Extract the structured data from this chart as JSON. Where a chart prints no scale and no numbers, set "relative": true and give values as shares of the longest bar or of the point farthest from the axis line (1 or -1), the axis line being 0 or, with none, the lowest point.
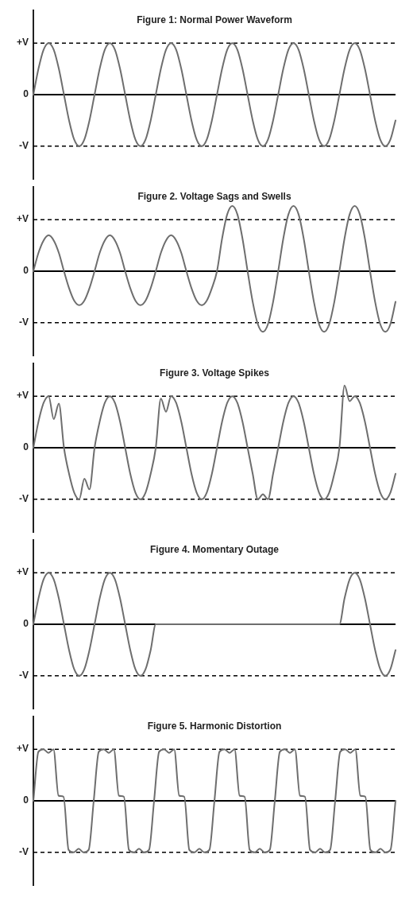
{
  "chart_data": [
    {
      "type": "line",
      "title": "Figure 1: Normal Power Waveform",
      "relative": true,
      "categories": [
        null,
        null,
        null,
        null,
        null,
        null,
        null,
        null,
        null,
        null,
        null,
        null,
        null,
        null,
        null,
        null,
        null,
        null,
        null,
        null,
        null,
        null,
        null,
        null,
        null,
        null,
        null,
        null,
        null,
        null,
        null,
        null,
        null,
        null,
        null,
        null,
        null,
        null,
        null,
        null,
        null,
        null,
        null,
        null,
        null,
        null,
        null,
        null,
        null,
        null,
        null,
        null,
        null,
        null,
        null,
        null,
        null,
        null,
        null,
        null,
        null,
        null,
        null,
        null,
        null,
        null,
        null,
        null,
        null,
        null,
        null,
        null
      ],
      "series": [
        {
          "color": "#6e6e6e",
          "values": [
            0,
            0.5,
            0.87,
            1,
            0.87,
            0.5,
            0,
            -0.5,
            -0.87,
            -1,
            -0.87,
            -0.5,
            0,
            0.5,
            0.87,
            1,
            0.87,
            0.5,
            0,
            -0.5,
            -0.87,
            -1,
            -0.87,
            -0.5,
            0,
            0.5,
            0.87,
            1,
            0.87,
            0.5,
            0,
            -0.5,
            -0.87,
            -1,
            -0.87,
            -0.5,
            0,
            0.5,
            0.87,
            1,
            0.87,
            0.5,
            0,
            -0.5,
            -0.87,
            -1,
            -0.87,
            -0.5,
            0,
            0.5,
            0.87,
            1,
            0.87,
            0.5,
            0,
            -0.5,
            -0.87,
            -1,
            -0.87,
            -0.5,
            0,
            0.5,
            0.87,
            1,
            0.87,
            0.5,
            0,
            -0.5,
            -0.87,
            -1,
            -0.87,
            -0.5
          ]
        }
      ],
      "grid": false,
      "marker": "none",
      "ref_lines": [
        {
          "axis": "y",
          "value": 1,
          "label": "+V",
          "color": "#000000",
          "line_style": "dashed"
        },
        {
          "axis": "y",
          "value": 0,
          "label": "0",
          "color": "#000000",
          "line_style": "solid"
        },
        {
          "axis": "y",
          "value": -1,
          "label": "-V",
          "color": "#000000",
          "line_style": "dashed"
        }
      ]
    },
    {
      "type": "line",
      "title": "Figure 2. Voltage Sags and Swells",
      "relative": true,
      "categories": [
        null,
        null,
        null,
        null,
        null,
        null,
        null,
        null,
        null,
        null,
        null,
        null,
        null,
        null,
        null,
        null,
        null,
        null,
        null,
        null,
        null,
        null,
        null,
        null,
        null,
        null,
        null,
        null,
        null,
        null,
        null,
        null,
        null,
        null,
        null,
        null,
        null,
        null,
        null,
        null,
        null,
        null,
        null,
        null,
        null,
        null,
        null,
        null,
        null,
        null,
        null,
        null,
        null,
        null,
        null,
        null,
        null,
        null,
        null,
        null,
        null,
        null,
        null,
        null,
        null,
        null,
        null,
        null,
        null,
        null,
        null,
        null
      ],
      "series": [
        {
          "color": "#6e6e6e",
          "values": [
            0,
            0.28,
            0.47,
            0.55,
            0.47,
            0.28,
            0,
            -0.26,
            -0.45,
            -0.52,
            -0.45,
            -0.26,
            0,
            0.28,
            0.47,
            0.55,
            0.47,
            0.28,
            0,
            -0.26,
            -0.45,
            -0.52,
            -0.45,
            -0.26,
            0,
            0.28,
            0.47,
            0.55,
            0.47,
            0.28,
            0,
            -0.26,
            -0.45,
            -0.52,
            -0.45,
            -0.26,
            0,
            0.5,
            0.87,
            1,
            0.87,
            0.5,
            0,
            -0.47,
            -0.81,
            -0.93,
            -0.81,
            -0.47,
            0,
            0.5,
            0.87,
            1,
            0.87,
            0.5,
            0,
            -0.47,
            -0.81,
            -0.93,
            -0.81,
            -0.47,
            0,
            0.5,
            0.87,
            1,
            0.87,
            0.5,
            0,
            -0.47,
            -0.81,
            -0.93,
            -0.81,
            -0.47
          ]
        }
      ],
      "grid": false,
      "marker": "none",
      "ref_lines": [
        {
          "axis": "y",
          "value": 0.79,
          "label": "+V",
          "color": "#000000",
          "line_style": "dashed"
        },
        {
          "axis": "y",
          "value": 0,
          "label": "0",
          "color": "#000000",
          "line_style": "solid"
        },
        {
          "axis": "y",
          "value": -0.79,
          "label": "-V",
          "color": "#000000",
          "line_style": "dashed"
        }
      ]
    },
    {
      "type": "line",
      "title": "Figure 3. Voltage Spikes",
      "relative": true,
      "categories": [
        null,
        null,
        null,
        null,
        null,
        null,
        null,
        null,
        null,
        null,
        null,
        null,
        null,
        null,
        null,
        null,
        null,
        null,
        null,
        null,
        null,
        null,
        null,
        null,
        null,
        null,
        null,
        null,
        null,
        null,
        null,
        null,
        null,
        null,
        null,
        null,
        null,
        null,
        null,
        null,
        null,
        null,
        null,
        null,
        null,
        null,
        null,
        null,
        null,
        null,
        null,
        null,
        null,
        null,
        null,
        null,
        null,
        null,
        null,
        null,
        null,
        null,
        null,
        null,
        null,
        null,
        null,
        null,
        null,
        null,
        null,
        null
      ],
      "series": [
        {
          "color": "#6e6e6e",
          "values": [
            0,
            0.42,
            0.72,
            0.83,
            0.46,
            0.71,
            0,
            -0.42,
            -0.72,
            -0.83,
            -0.5,
            -0.67,
            0,
            0.42,
            0.72,
            0.83,
            0.72,
            0.42,
            0,
            -0.42,
            -0.72,
            -0.83,
            -0.72,
            -0.42,
            0,
            0.79,
            0.58,
            0.83,
            0.72,
            0.42,
            0,
            -0.42,
            -0.72,
            -0.83,
            -0.72,
            -0.42,
            0,
            0.42,
            0.72,
            0.83,
            0.72,
            0.42,
            0,
            -0.42,
            -0.83,
            -0.75,
            -0.83,
            -0.42,
            0,
            0.42,
            0.72,
            0.83,
            0.72,
            0.42,
            0,
            -0.42,
            -0.72,
            -0.83,
            -0.72,
            -0.42,
            0,
            1,
            0.75,
            0.83,
            0.72,
            0.42,
            0,
            -0.42,
            -0.72,
            -0.83,
            -0.72,
            -0.42
          ]
        }
      ],
      "grid": false,
      "marker": "none",
      "ref_lines": [
        {
          "axis": "y",
          "value": 0.83,
          "label": "+V",
          "color": "#000000",
          "line_style": "dashed"
        },
        {
          "axis": "y",
          "value": 0,
          "label": "0",
          "color": "#000000",
          "line_style": "solid"
        },
        {
          "axis": "y",
          "value": -0.83,
          "label": "-V",
          "color": "#000000",
          "line_style": "dashed"
        }
      ]
    },
    {
      "type": "line",
      "title": "Figure 4. Momentary Outage",
      "relative": true,
      "categories": [
        null,
        null,
        null,
        null,
        null,
        null,
        null,
        null,
        null,
        null,
        null,
        null,
        null,
        null,
        null,
        null,
        null,
        null,
        null,
        null,
        null,
        null,
        null,
        null,
        null,
        null,
        null,
        null,
        null,
        null,
        null,
        null,
        null,
        null,
        null,
        null,
        null,
        null,
        null,
        null,
        null,
        null,
        null,
        null,
        null,
        null,
        null,
        null,
        null,
        null,
        null,
        null,
        null,
        null,
        null,
        null,
        null,
        null,
        null,
        null,
        null,
        null,
        null,
        null,
        null,
        null,
        null,
        null,
        null,
        null,
        null,
        null
      ],
      "series": [
        {
          "color": "#6e6e6e",
          "values": [
            0,
            0.5,
            0.87,
            1,
            0.87,
            0.5,
            0,
            -0.5,
            -0.87,
            -1,
            -0.87,
            -0.5,
            0,
            0.5,
            0.87,
            1,
            0.87,
            0.5,
            0,
            -0.5,
            -0.87,
            -1,
            -0.87,
            -0.5,
            0,
            0,
            0,
            0,
            0,
            0,
            0,
            0,
            0,
            0,
            0,
            0,
            0,
            0,
            0,
            0,
            0,
            0,
            0,
            0,
            0,
            0,
            0,
            0,
            0,
            0,
            0,
            0,
            0,
            0,
            0,
            0,
            0,
            0,
            0,
            0,
            0,
            0.5,
            0.87,
            1,
            0.87,
            0.5,
            0,
            -0.5,
            -0.87,
            -1,
            -0.87,
            -0.5
          ]
        }
      ],
      "grid": false,
      "marker": "none",
      "ref_lines": [
        {
          "axis": "y",
          "value": 1,
          "label": "+V",
          "color": "#000000",
          "line_style": "dashed"
        },
        {
          "axis": "y",
          "value": 0,
          "label": "0",
          "color": "#000000",
          "line_style": "solid"
        },
        {
          "axis": "y",
          "value": -1,
          "label": "-V",
          "color": "#000000",
          "line_style": "dashed"
        }
      ]
    },
    {
      "type": "line",
      "title": "Figure 5. Harmonic Distortion",
      "relative": true,
      "categories": [
        null,
        null,
        null,
        null,
        null,
        null,
        null,
        null,
        null,
        null,
        null,
        null,
        null,
        null,
        null,
        null,
        null,
        null,
        null,
        null,
        null,
        null,
        null,
        null,
        null,
        null,
        null,
        null,
        null,
        null,
        null,
        null,
        null,
        null,
        null,
        null,
        null,
        null,
        null,
        null,
        null,
        null,
        null,
        null,
        null,
        null,
        null,
        null,
        null,
        null,
        null,
        null,
        null,
        null,
        null,
        null,
        null,
        null,
        null,
        null,
        null,
        null,
        null,
        null,
        null,
        null,
        null,
        null,
        null,
        null,
        null,
        null,
        null
      ],
      "series": [
        {
          "color": "#6e6e6e",
          "values": [
            0,
            0.95,
            1,
            0.93,
            1,
            0.1,
            0.08,
            -0.95,
            -1,
            -0.93,
            -1,
            -0.95,
            0,
            0.95,
            1,
            0.93,
            1,
            0.1,
            0.08,
            -0.95,
            -1,
            -0.93,
            -1,
            -0.95,
            0,
            0.95,
            1,
            0.93,
            1,
            0.1,
            0.08,
            -0.95,
            -1,
            -0.93,
            -1,
            -0.95,
            0,
            0.95,
            1,
            0.93,
            1,
            0.1,
            0.08,
            -0.95,
            -1,
            -0.93,
            -1,
            -0.95,
            0,
            0.95,
            1,
            0.93,
            1,
            0.1,
            0.08,
            -0.95,
            -1,
            -0.93,
            -1,
            -0.95,
            0,
            0.95,
            1,
            0.93,
            1,
            0.1,
            0.08,
            -0.95,
            -1,
            -0.93,
            -1,
            -0.95,
            0
          ]
        }
      ],
      "grid": false,
      "marker": "none",
      "ref_lines": [
        {
          "axis": "y",
          "value": 1,
          "label": "+V",
          "color": "#000000",
          "line_style": "dashed"
        },
        {
          "axis": "y",
          "value": 0,
          "label": "0",
          "color": "#000000",
          "line_style": "solid"
        },
        {
          "axis": "y",
          "value": -1,
          "label": "-V",
          "color": "#000000",
          "line_style": "dashed"
        }
      ]
    }
  ]
}
